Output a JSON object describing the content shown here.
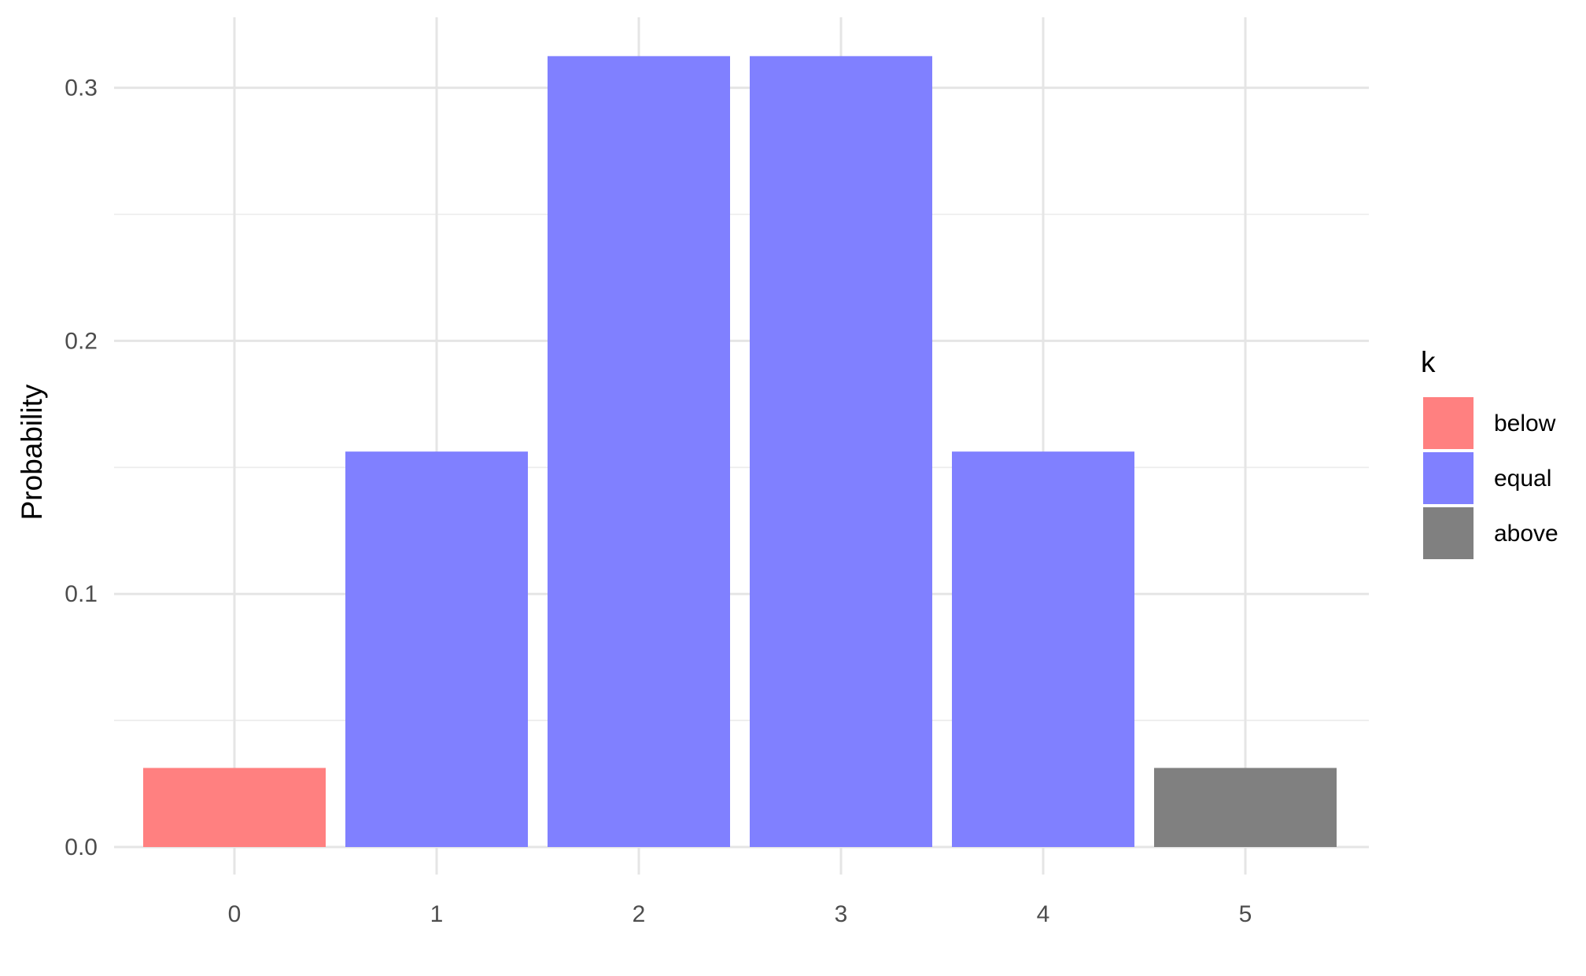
{
  "chart_data": {
    "type": "bar",
    "categories": [
      "0",
      "1",
      "2",
      "3",
      "4",
      "5"
    ],
    "x": [
      0,
      1,
      2,
      3,
      4,
      5
    ],
    "values": [
      0.03125,
      0.15625,
      0.3125,
      0.3125,
      0.15625,
      0.03125
    ],
    "groups": [
      "below",
      "equal",
      "equal",
      "equal",
      "equal",
      "above"
    ],
    "title": "",
    "xlabel": "",
    "ylabel": "Probability",
    "ylim": [
      0,
      0.32
    ],
    "yticks": [
      "0.0",
      "0.1",
      "0.2",
      "0.3"
    ],
    "grid": true,
    "legend": {
      "title": "k",
      "placement": "right",
      "entries": [
        {
          "name": "below",
          "color": "#ff8080"
        },
        {
          "name": "equal",
          "color": "#8080ff"
        },
        {
          "name": "above",
          "color": "#808080"
        }
      ]
    }
  }
}
